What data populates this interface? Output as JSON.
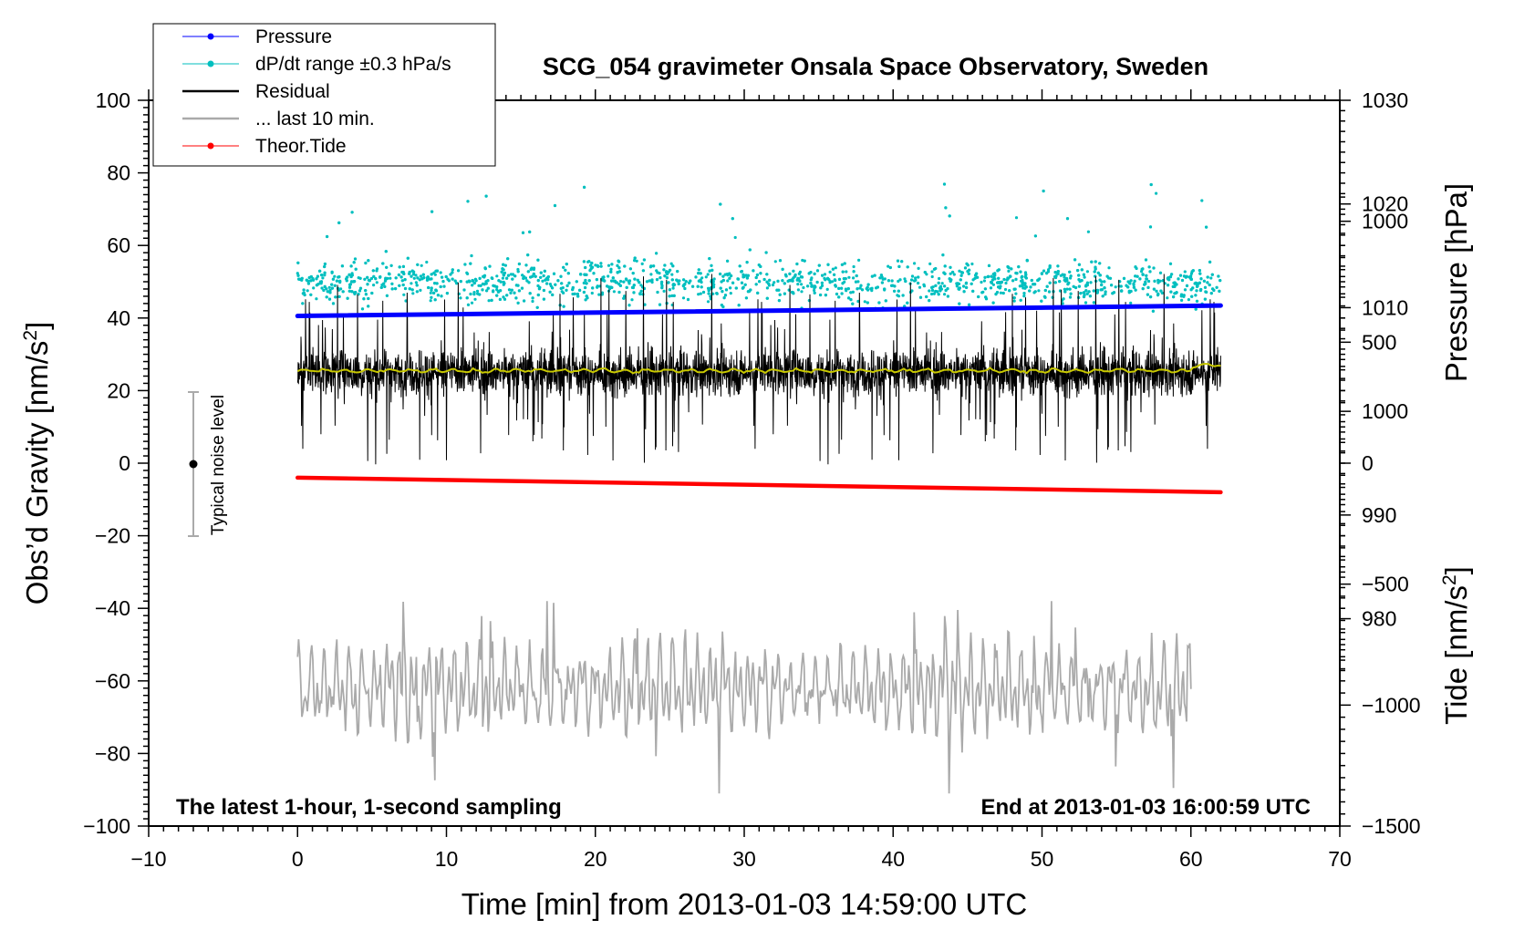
{
  "chart_data": {
    "type": "line",
    "title": "SCG_054 gravimeter Onsala Space Observatory, Sweden",
    "xlabel": "Time [min] from 2013-01-03 14:59:00 UTC",
    "ylabel_left_main": "Obs’d Gravity [nm/s",
    "ylabel_left_sup": "2",
    "ylabel_left_close": "]",
    "ylabel_right_pressure": "Pressure [hPa]",
    "ylabel_right_tide_main": "Tide [nm/s",
    "ylabel_right_tide_sup": "2",
    "ylabel_right_tide_close": "]",
    "xlim": [
      -10,
      70
    ],
    "ylim": [
      -100,
      100
    ],
    "xticks": [
      -10,
      0,
      10,
      20,
      30,
      40,
      50,
      60,
      70
    ],
    "xtick_labels": [
      "−10",
      "0",
      "10",
      "20",
      "30",
      "40",
      "50",
      "60",
      "70"
    ],
    "yticks": [
      -100,
      -80,
      -60,
      -40,
      -20,
      0,
      20,
      40,
      60,
      80,
      100
    ],
    "ytick_labels": [
      "−100",
      "−80",
      "−60",
      "−40",
      "−20",
      "0",
      "20",
      "40",
      "60",
      "80",
      "100"
    ],
    "pressure_axis": {
      "ylim": [
        960,
        1030
      ],
      "ticks": [
        980,
        990,
        1000,
        1010,
        1020,
        1030
      ],
      "tick_labels": [
        "980",
        "990",
        "1000",
        "1010",
        "1020",
        "1030"
      ]
    },
    "tide_axis": {
      "ylim": [
        -1500,
        1500
      ],
      "ticks": [
        -1500,
        -1000,
        -500,
        0,
        500,
        1000
      ],
      "tick_labels": [
        "−1500",
        "−1000",
        "−500",
        "0",
        "500",
        "1000"
      ]
    },
    "series": [
      {
        "name": "Pressure",
        "axis": "pressure",
        "color": "#0000ff",
        "x_range": [
          0,
          62
        ],
        "y_start": 1009.2,
        "y_end": 1010.2
      },
      {
        "name": "dP/dt range ±0.3 hPa/s",
        "axis": "gravity",
        "color": "#00bfbf",
        "x_range": [
          0,
          62
        ],
        "center": 50,
        "spread": 9
      },
      {
        "name": "Residual",
        "axis": "gravity",
        "color": "#000000",
        "x_range": [
          0,
          62
        ],
        "center": 25,
        "spread": 12,
        "min": -5,
        "max": 59
      },
      {
        "name": "... last 10 min.",
        "axis": "gravity",
        "color": "#ffffff",
        "x_range": [
          0,
          62
        ],
        "center": 25.5
      },
      {
        "name": "last 10 min. (grey trace)",
        "axis": "gravity",
        "color": "#aaaaaa",
        "x_range": [
          0,
          60
        ],
        "center": -62,
        "spread": 12,
        "min": -91,
        "max": -38
      },
      {
        "name": "Theor.Tide",
        "axis": "tide",
        "color": "#ff0000",
        "x_range": [
          0,
          62
        ],
        "y_start": -60,
        "y_end": -120
      }
    ],
    "legend": {
      "position": "top-left",
      "entries": [
        {
          "label": "Pressure",
          "color": "#0000ff",
          "marker": "dot"
        },
        {
          "label": "dP/dt range ±0.3 hPa/s",
          "color": "#00bfbf",
          "marker": "dot"
        },
        {
          "label": "Residual",
          "color": "#000000",
          "marker": "line"
        },
        {
          "label": "... last 10 min.",
          "color": "#aaaaaa",
          "marker": "line"
        },
        {
          "label": "Theor.Tide",
          "color": "#ff0000",
          "marker": "dot"
        }
      ]
    },
    "noise_level": {
      "label": "Typical noise level",
      "x": -7,
      "y": 0,
      "low": -20,
      "high": 20
    },
    "annotations": {
      "bottom_left": "The latest 1-hour, 1-second sampling",
      "bottom_right": "End at 2013-01-03 16:00:59 UTC"
    }
  }
}
